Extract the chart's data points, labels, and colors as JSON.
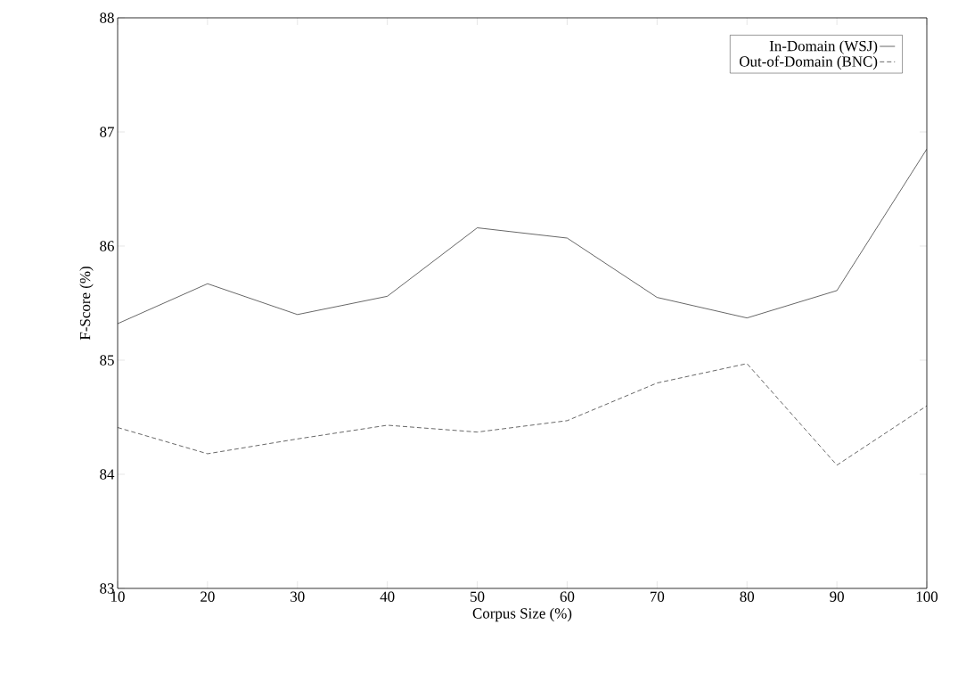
{
  "chart_data": {
    "type": "line",
    "xlabel": "Corpus Size (%)",
    "ylabel": "F-Score (%)",
    "x": [
      10,
      20,
      30,
      40,
      50,
      60,
      70,
      80,
      90,
      100
    ],
    "series": [
      {
        "name": "In-Domain (WSJ)",
        "color": "#000000",
        "line_style": "solid",
        "values": [
          85.32,
          85.67,
          85.4,
          85.56,
          86.16,
          86.07,
          85.55,
          85.37,
          85.61,
          86.85
        ]
      },
      {
        "name": "Out-of-Domain (BNC)",
        "color": "#000000",
        "line_style": "dashed",
        "values": [
          84.41,
          84.18,
          84.31,
          84.43,
          84.37,
          84.47,
          84.8,
          84.97,
          84.08,
          84.6
        ]
      }
    ],
    "xlim": [
      10,
      100
    ],
    "ylim": [
      83,
      88
    ],
    "xticks": [
      10,
      20,
      30,
      40,
      50,
      60,
      70,
      80,
      90,
      100
    ],
    "yticks": [
      83,
      84,
      85,
      86,
      87,
      88
    ],
    "grid": false,
    "legend": "top right",
    "marker": "none"
  }
}
